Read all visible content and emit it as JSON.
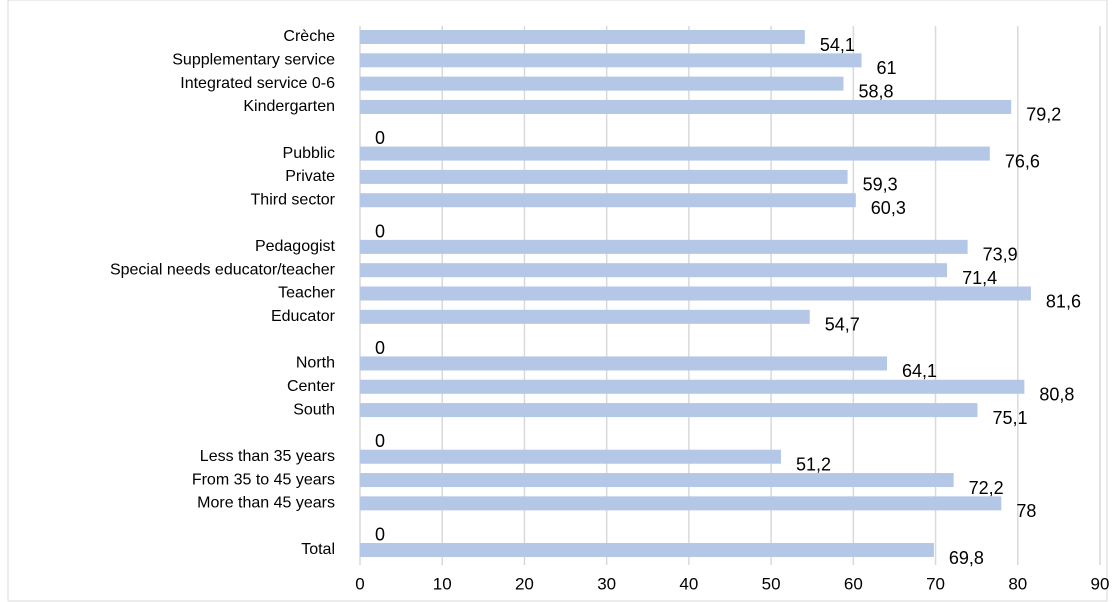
{
  "chart_data": {
    "type": "barh",
    "categories": [
      "Crèche",
      "Supplementary service",
      "Integrated service 0-6",
      "Kindergarten",
      null,
      "Pubblic",
      "Private",
      "Third sector",
      null,
      "Pedagogist",
      "Special needs educator/teacher",
      "Teacher",
      "Educator",
      null,
      "North",
      "Center",
      "South",
      null,
      "Less than 35 years",
      "From 35 to 45 years",
      "More than 45 years",
      null,
      "Total"
    ],
    "values": [
      54.1,
      61,
      58.8,
      79.2,
      0,
      76.6,
      59.3,
      60.3,
      0,
      73.9,
      71.4,
      81.6,
      54.7,
      0,
      64.1,
      80.8,
      75.1,
      0,
      51.2,
      72.2,
      78,
      0,
      69.8
    ],
    "value_labels": [
      "54,1",
      "61",
      "58,8",
      "79,2",
      "0",
      "76,6",
      "59,3",
      "60,3",
      "0",
      "73,9",
      "71,4",
      "81,6",
      "54,7",
      "0",
      "64,1",
      "80,8",
      "75,1",
      "0",
      "51,2",
      "72,2",
      "78",
      "0",
      "69,8"
    ],
    "color": "#b4c7e7",
    "xlim": [
      0,
      90
    ],
    "xticks": [
      0,
      10,
      20,
      30,
      40,
      50,
      60,
      70,
      80,
      90
    ],
    "grid": true
  }
}
